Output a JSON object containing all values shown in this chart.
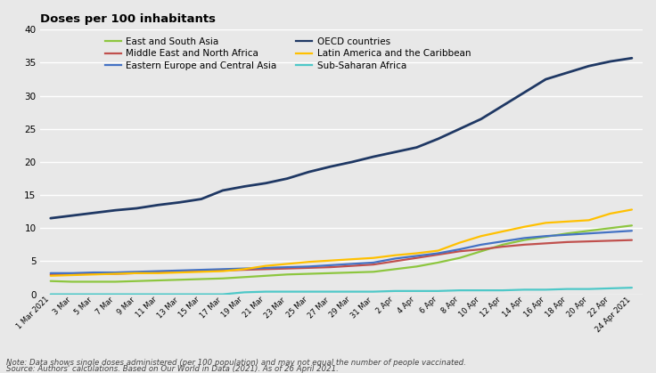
{
  "title": "Doses per 100 inhabitants",
  "note": "Note: Data shows single doses administered (per 100 population) and may not equal the number of people vaccinated.",
  "source": "Source: Authors' calculations. Based on Our World in Data (2021). As of 26 April 2021.",
  "background_color": "#e8e8e8",
  "plot_bg_color": "#e8e8e8",
  "ylim": [
    0,
    40
  ],
  "yticks": [
    0,
    5,
    10,
    15,
    20,
    25,
    30,
    35,
    40
  ],
  "x_labels": [
    "1 Mar 2021",
    "3 Mar",
    "5 Mar",
    "7 Mar",
    "9 Mar",
    "11 Mar",
    "13 Mar",
    "15 Mar",
    "17 Mar",
    "19 Mar",
    "21 Mar",
    "23 Mar",
    "25 Mar",
    "27 Mar",
    "29 Mar",
    "31 Mar",
    "2 Apr",
    "4 Apr",
    "6 Apr",
    "8 Apr",
    "10 Apr",
    "12 Apr",
    "14 Apr",
    "16 Apr",
    "18 Apr",
    "20 Apr",
    "22 Apr",
    "24 Apr 2021"
  ],
  "series": {
    "East and South Asia": {
      "color": "#8dc63f",
      "linewidth": 1.6,
      "data": [
        2.0,
        1.9,
        1.9,
        1.9,
        2.0,
        2.1,
        2.2,
        2.3,
        2.4,
        2.6,
        2.8,
        3.0,
        3.1,
        3.2,
        3.3,
        3.4,
        3.8,
        4.2,
        4.8,
        5.5,
        6.5,
        7.5,
        8.2,
        8.7,
        9.2,
        9.6,
        10.0,
        10.4
      ]
    },
    "Eastern Europe and Central Asia": {
      "color": "#4472c4",
      "linewidth": 1.6,
      "data": [
        3.2,
        3.2,
        3.3,
        3.3,
        3.4,
        3.5,
        3.6,
        3.7,
        3.8,
        3.9,
        4.0,
        4.1,
        4.2,
        4.4,
        4.6,
        4.8,
        5.4,
        5.8,
        6.2,
        6.8,
        7.5,
        8.0,
        8.5,
        8.8,
        9.0,
        9.2,
        9.4,
        9.6
      ]
    },
    "Latin America and the Caribbean": {
      "color": "#ffc000",
      "linewidth": 1.6,
      "data": [
        2.8,
        2.9,
        3.0,
        3.1,
        3.2,
        3.2,
        3.3,
        3.4,
        3.5,
        3.8,
        4.3,
        4.6,
        4.9,
        5.1,
        5.3,
        5.5,
        5.9,
        6.2,
        6.6,
        7.8,
        8.8,
        9.5,
        10.2,
        10.8,
        11.0,
        11.2,
        12.2,
        12.8
      ]
    },
    "Middle East and North Africa": {
      "color": "#c0504d",
      "linewidth": 1.6,
      "data": [
        3.0,
        3.0,
        3.1,
        3.1,
        3.2,
        3.3,
        3.4,
        3.5,
        3.6,
        3.7,
        3.8,
        3.9,
        4.0,
        4.1,
        4.3,
        4.5,
        5.0,
        5.5,
        6.0,
        6.5,
        6.8,
        7.2,
        7.5,
        7.7,
        7.9,
        8.0,
        8.1,
        8.2
      ]
    },
    "OECD countries": {
      "color": "#1f3864",
      "linewidth": 2.0,
      "data": [
        11.5,
        11.9,
        12.3,
        12.7,
        13.0,
        13.5,
        13.9,
        14.4,
        15.7,
        16.3,
        16.8,
        17.5,
        18.5,
        19.3,
        20.0,
        20.8,
        21.5,
        22.2,
        23.5,
        25.0,
        26.5,
        28.5,
        30.5,
        32.5,
        33.5,
        34.5,
        35.2,
        35.7
      ]
    },
    "Sub-Saharan Africa": {
      "color": "#4ec8c8",
      "linewidth": 1.6,
      "data": [
        0.0,
        0.0,
        0.0,
        0.0,
        0.0,
        0.0,
        0.0,
        0.0,
        0.0,
        0.3,
        0.4,
        0.4,
        0.4,
        0.4,
        0.4,
        0.4,
        0.5,
        0.5,
        0.5,
        0.6,
        0.6,
        0.6,
        0.7,
        0.7,
        0.8,
        0.8,
        0.9,
        1.0
      ]
    }
  },
  "legend_left": [
    "East and South Asia",
    "Eastern Europe and Central Asia",
    "Latin America and the Caribbean"
  ],
  "legend_right": [
    "Middle East and North Africa",
    "OECD countries",
    "Sub-Saharan Africa"
  ],
  "plot_order": [
    "Sub-Saharan Africa",
    "East and South Asia",
    "Middle East and North Africa",
    "Eastern Europe and Central Asia",
    "Latin America and the Caribbean",
    "OECD countries"
  ]
}
